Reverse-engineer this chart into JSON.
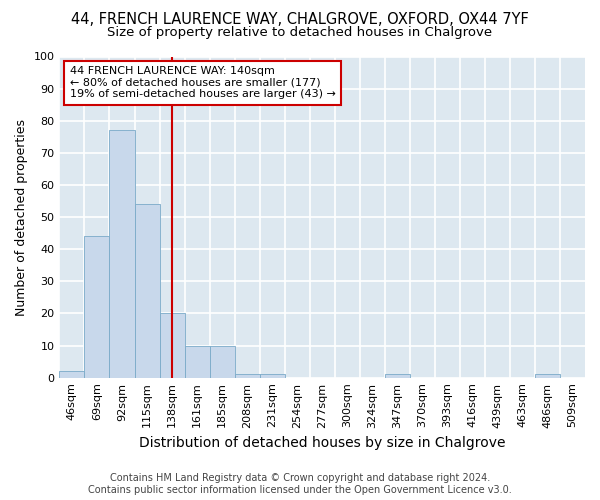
{
  "title": "44, FRENCH LAURENCE WAY, CHALGROVE, OXFORD, OX44 7YF",
  "subtitle": "Size of property relative to detached houses in Chalgrove",
  "xlabel": "Distribution of detached houses by size in Chalgrove",
  "ylabel": "Number of detached properties",
  "categories": [
    "46sqm",
    "69sqm",
    "92sqm",
    "115sqm",
    "138sqm",
    "161sqm",
    "185sqm",
    "208sqm",
    "231sqm",
    "254sqm",
    "277sqm",
    "300sqm",
    "324sqm",
    "347sqm",
    "370sqm",
    "393sqm",
    "416sqm",
    "439sqm",
    "463sqm",
    "486sqm",
    "509sqm"
  ],
  "bar_heights": [
    2,
    44,
    77,
    54,
    20,
    10,
    10,
    1,
    1,
    0,
    0,
    0,
    0,
    1,
    0,
    0,
    0,
    0,
    0,
    1,
    0
  ],
  "bar_color": "#c8d8eb",
  "bar_edge_color": "#7aaac8",
  "vline_x_label": "138sqm",
  "vline_color": "#cc0000",
  "annotation_text": "44 FRENCH LAURENCE WAY: 140sqm\n← 80% of detached houses are smaller (177)\n19% of semi-detached houses are larger (43) →",
  "annotation_box_color": "#cc0000",
  "ylim": [
    0,
    100
  ],
  "yticks": [
    0,
    10,
    20,
    30,
    40,
    50,
    60,
    70,
    80,
    90,
    100
  ],
  "background_color": "#dde8f0",
  "grid_color": "#ffffff",
  "footer_line1": "Contains HM Land Registry data © Crown copyright and database right 2024.",
  "footer_line2": "Contains public sector information licensed under the Open Government Licence v3.0.",
  "title_fontsize": 10.5,
  "subtitle_fontsize": 9.5,
  "xlabel_fontsize": 10,
  "ylabel_fontsize": 9,
  "tick_fontsize": 8,
  "annotation_fontsize": 8,
  "footer_fontsize": 7
}
